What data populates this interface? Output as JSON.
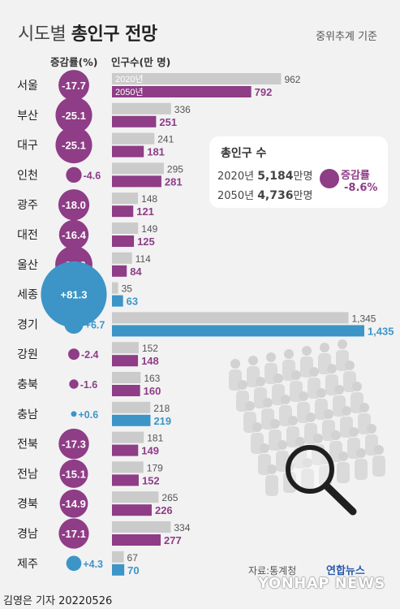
{
  "header": {
    "title_prefix": "시도별",
    "title_main": "총인구 전망",
    "basis": "중위추계 기준"
  },
  "columns": {
    "rate": "증감률(%)",
    "population": "인구수(만 명)"
  },
  "summary": {
    "heading": "총인구 수",
    "y2020_label": "2020년",
    "y2020_value": "5,184",
    "y2020_unit": "만명",
    "y2050_label": "2050년",
    "y2050_value": "4,736",
    "y2050_unit": "만명",
    "rate_label": "증감률",
    "rate_value": "-8.6%"
  },
  "colors": {
    "grey_bar": "#cbcbcb",
    "decrease": "#8e3d86",
    "increase": "#3c95c6",
    "background": "#f2f2f3"
  },
  "chart_data": {
    "type": "bar",
    "categories": [
      "서울",
      "부산",
      "대구",
      "인천",
      "광주",
      "대전",
      "울산",
      "세종",
      "경기",
      "강원",
      "충북",
      "충남",
      "전북",
      "전남",
      "경북",
      "경남",
      "제주"
    ],
    "series": [
      {
        "name": "2020년",
        "values": [
          962,
          336,
          241,
          295,
          148,
          149,
          114,
          35,
          1345,
          152,
          163,
          218,
          181,
          179,
          265,
          334,
          67
        ]
      },
      {
        "name": "2050년",
        "values": [
          792,
          251,
          181,
          281,
          121,
          125,
          84,
          63,
          1435,
          148,
          160,
          219,
          149,
          152,
          226,
          277,
          70
        ]
      }
    ],
    "change_rate": [
      -17.7,
      -25.1,
      -25.1,
      -4.6,
      -18.0,
      -16.4,
      -25.9,
      81.3,
      6.7,
      -2.4,
      -1.6,
      0.6,
      -17.3,
      -15.1,
      -14.9,
      -17.1,
      4.3
    ],
    "change_labels": [
      "-17.7",
      "-25.1",
      "-25.1",
      "-4.6",
      "-18.0",
      "-16.4",
      "-25.9",
      "+81.3",
      "+6.7",
      "-2.4",
      "-1.6",
      "+0.6",
      "-17.3",
      "-15.1",
      "-14.9",
      "-17.1",
      "+4.3"
    ],
    "value_labels_2020": [
      "962",
      "336",
      "241",
      "295",
      "148",
      "149",
      "114",
      "35",
      "1,345",
      "152",
      "163",
      "218",
      "181",
      "179",
      "265",
      "334",
      "67"
    ],
    "value_labels_2050": [
      "792",
      "251",
      "181",
      "281",
      "121",
      "125",
      "84",
      "63",
      "1,435",
      "148",
      "160",
      "219",
      "149",
      "152",
      "226",
      "277",
      "70"
    ]
  },
  "source": "자료:통계청",
  "logo": "연합뉴스",
  "watermark": "YONHAP NEWS",
  "footer": "김영은 기자  20220526"
}
